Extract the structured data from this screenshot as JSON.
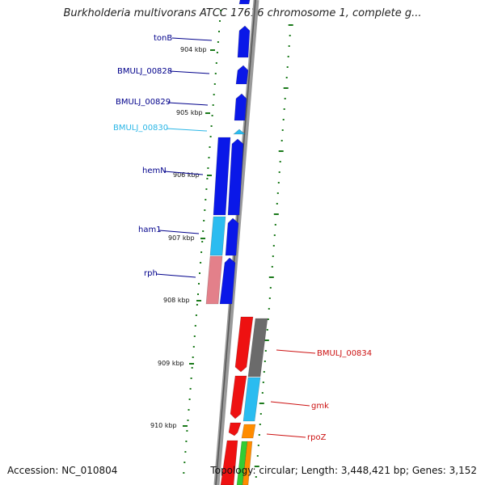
{
  "title": "Burkholderia multivorans ATCC 17616 chromosome 1, complete g...",
  "footer": {
    "accession": "Accession: NC_010804",
    "stats": "Topology: circular; Length: 3,448,421 bp; Genes: 3,152"
  },
  "colors": {
    "blue": "#0a18e8",
    "light_blue": "#2bbcf0",
    "pink": "#e3808a",
    "red": "#ee1111",
    "gray": "#6b6b6b",
    "orange": "#ff8c00",
    "green": "#33cc33",
    "label_blue": "#00008b",
    "label_light_blue": "#2bb6e6",
    "label_red": "#cc1111",
    "tick_green": "#1b7a1b"
  },
  "kbp_ticks": [
    "904 kbp",
    "905 kbp",
    "906 kbp",
    "907 kbp",
    "908 kbp",
    "909 kbp",
    "910 kbp"
  ],
  "gene_labels": {
    "tonB": "tonB",
    "bmulj_00828": "BMULJ_00828",
    "bmulj_00829": "BMULJ_00829",
    "bmulj_00830": "BMULJ_00830",
    "hemN": "hemN",
    "ham1": "ham1",
    "rph": "rph",
    "bmulj_00834": "BMULJ_00834",
    "gmk": "gmk",
    "rpoZ": "rpoZ"
  }
}
